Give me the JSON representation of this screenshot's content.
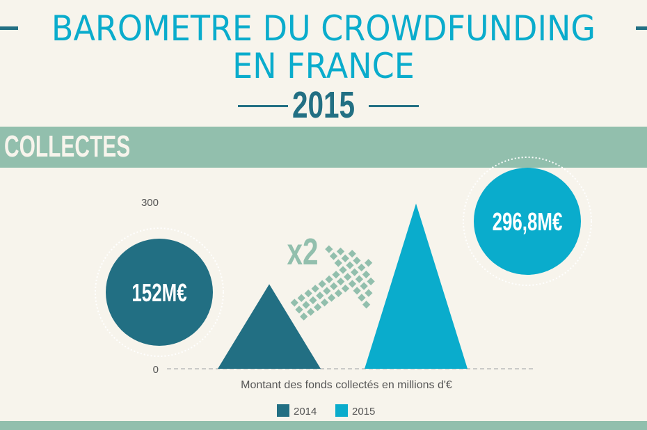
{
  "header": {
    "title_line1": "BAROMETRE DU CROWDFUNDING",
    "title_line2": "EN FRANCE",
    "year": "2015"
  },
  "section": {
    "label": "COLLECTES"
  },
  "colors": {
    "2014": "#226f83",
    "2015": "#0aaccc",
    "accent": "#92bfad",
    "background": "#f7f4ec"
  },
  "chart_data": {
    "type": "bar",
    "mark_shape": "triangle",
    "categories": [
      "2014",
      "2015"
    ],
    "values": [
      152,
      296.8
    ],
    "data_labels": [
      "152M€",
      "296,8M€"
    ],
    "xlabel": "Montant des fonds collectés en millions d'€",
    "ylabel": "",
    "ylim": [
      0,
      300
    ],
    "yticks": [
      "0",
      "300"
    ],
    "legend": {
      "placement": "bottom",
      "entries": [
        "2014",
        "2015"
      ]
    },
    "annotation": "x2",
    "grid": false
  }
}
